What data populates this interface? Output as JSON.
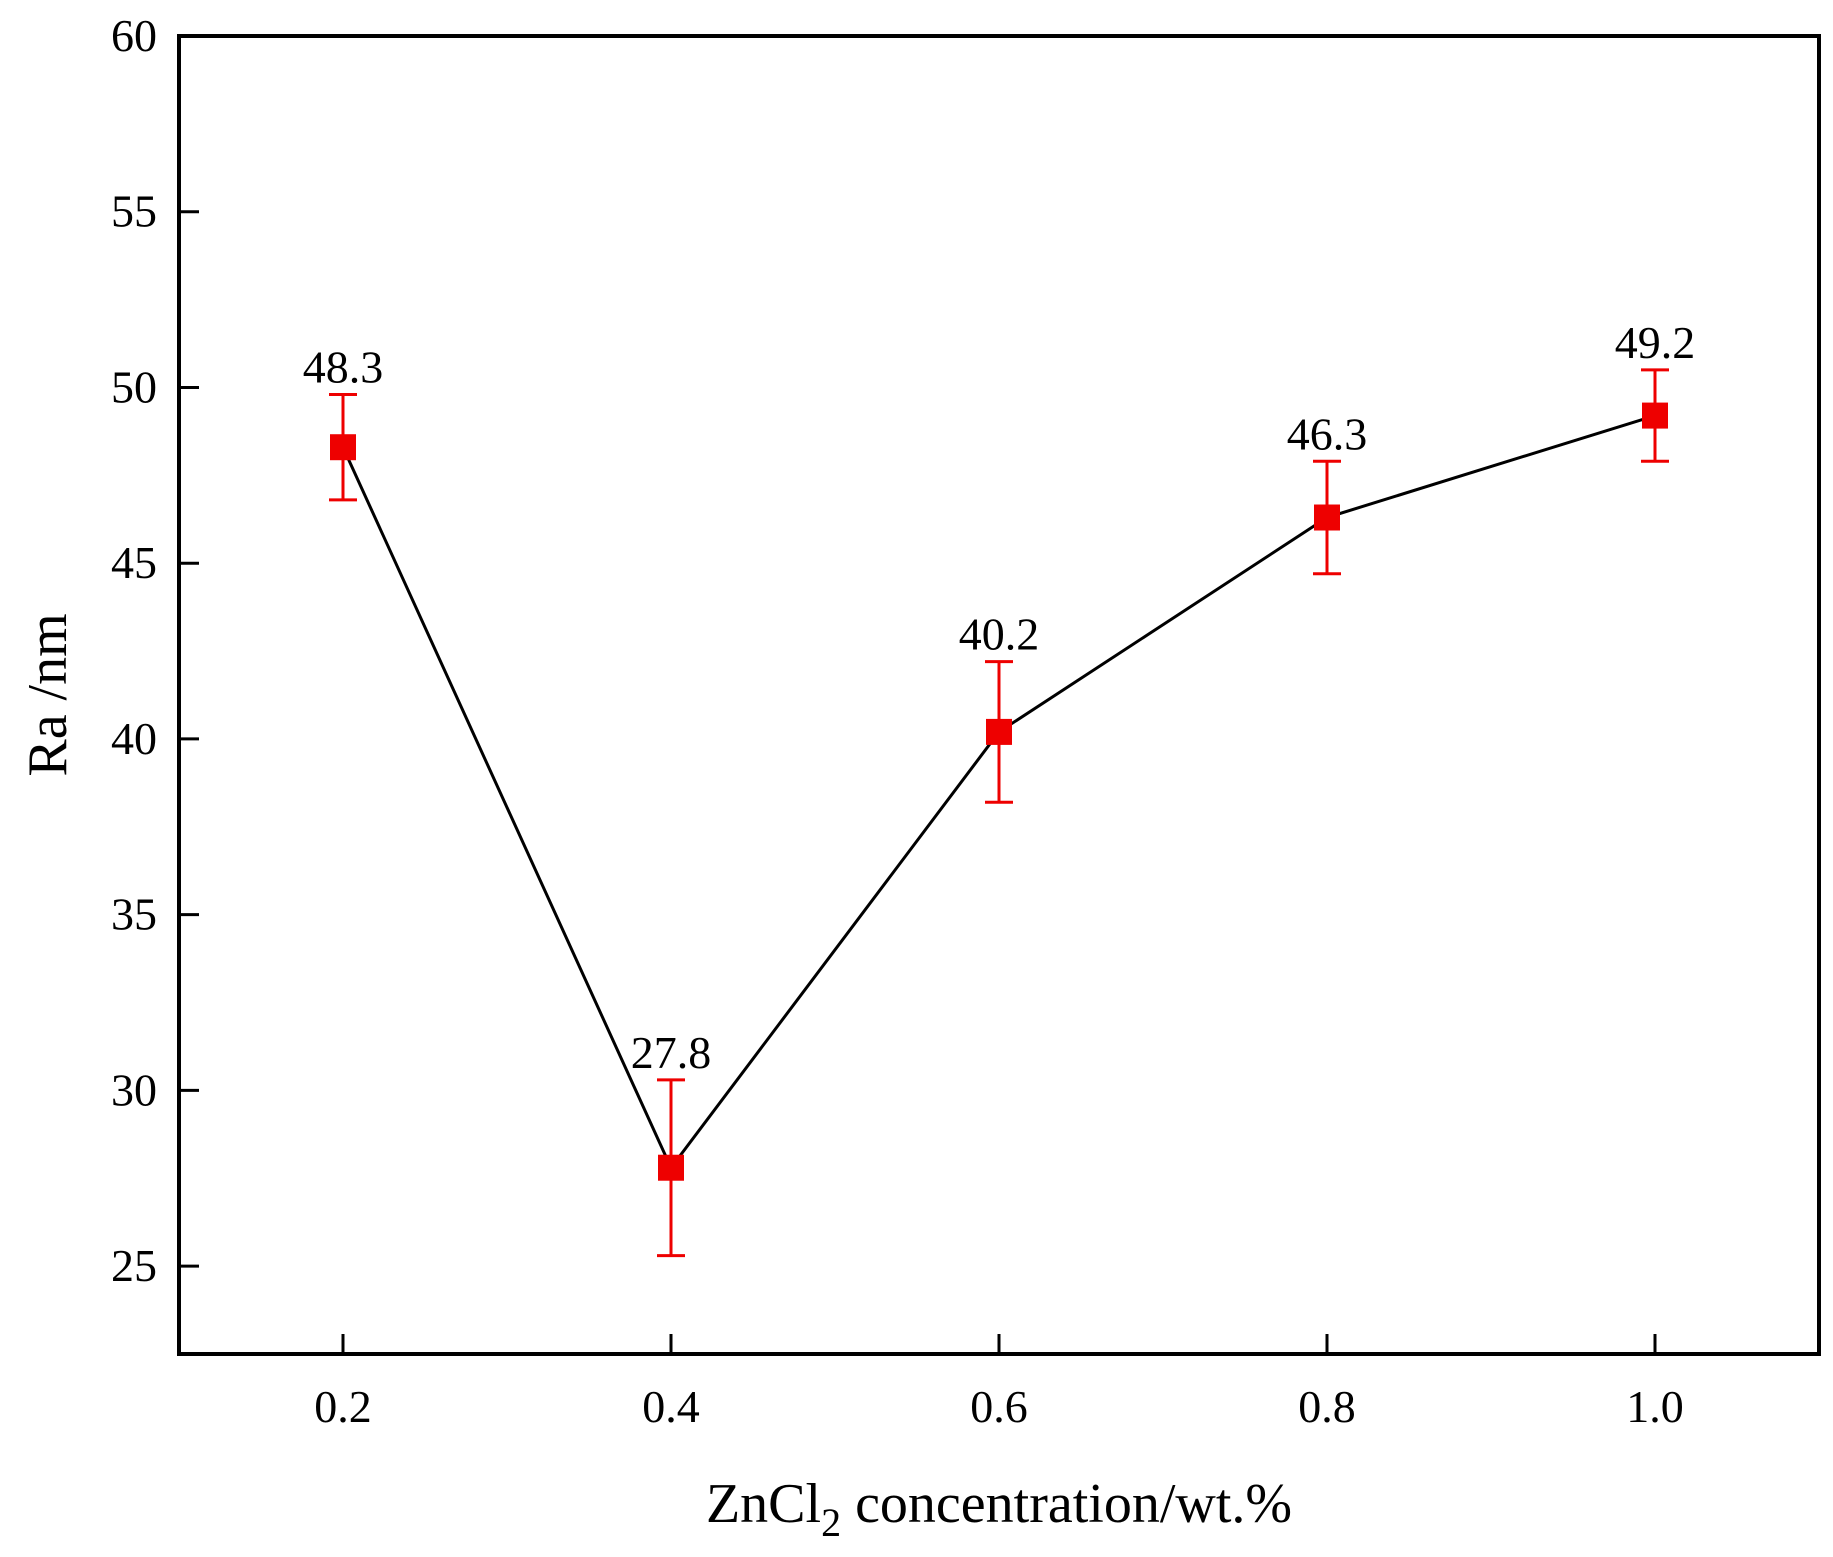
{
  "chart_data": {
    "type": "line",
    "title": "",
    "x": [
      0.2,
      0.4,
      0.6,
      0.8,
      1.0
    ],
    "x_tick_labels": [
      "0.2",
      "0.4",
      "0.6",
      "0.8",
      "1.0"
    ],
    "y_tick_values": [
      25,
      30,
      35,
      40,
      45,
      50,
      55,
      60
    ],
    "y_tick_labels": [
      "25",
      "30",
      "35",
      "40",
      "45",
      "50",
      "55",
      "60"
    ],
    "xlim": [
      0.1,
      1.1
    ],
    "ylim": [
      22.5,
      60
    ],
    "xlabel": {
      "base": "ZnCl",
      "subscript": "2",
      "rest": " concentration/wt.%"
    },
    "ylabel": "Ra /nm",
    "grid": false,
    "legend": "none",
    "series": [
      {
        "name": "Ra",
        "values": [
          48.3,
          27.8,
          40.2,
          46.3,
          49.2
        ],
        "data_labels": [
          "48.3",
          "27.8",
          "40.2",
          "46.3",
          "49.2"
        ],
        "error_upper": [
          49.8,
          30.3,
          42.2,
          47.9,
          50.5
        ],
        "error_lower": [
          46.8,
          25.3,
          38.2,
          44.7,
          47.9
        ],
        "line_color": "#000000",
        "marker": "square",
        "marker_color": "#ee0000",
        "error_color": "#ee0000"
      }
    ]
  }
}
